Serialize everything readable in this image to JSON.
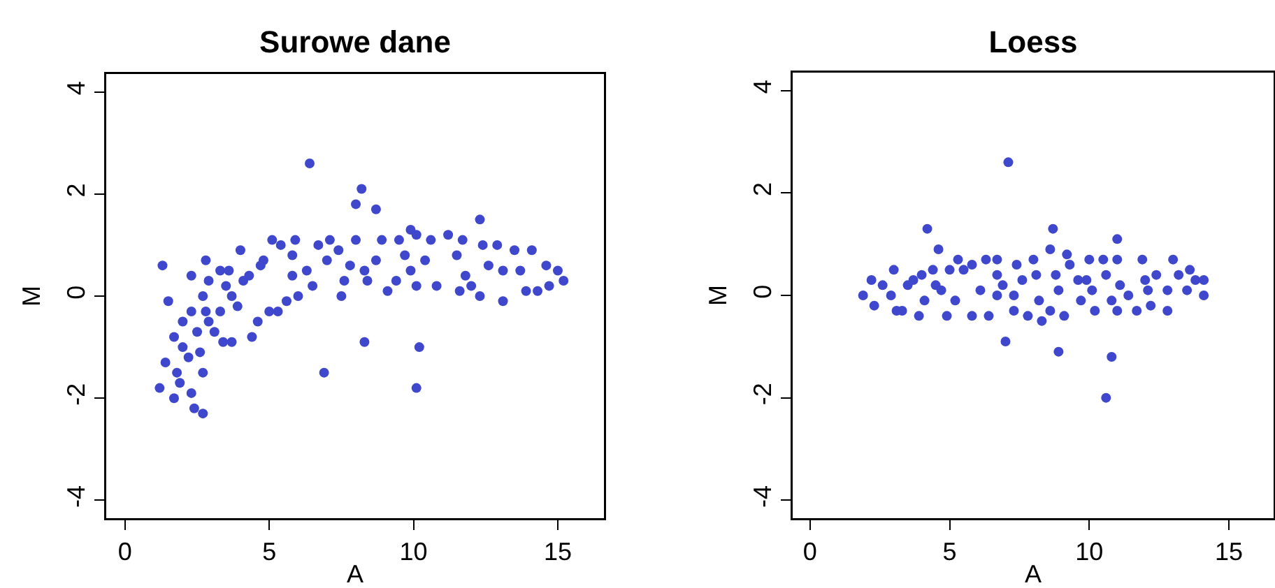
{
  "chart_data": [
    {
      "type": "scatter",
      "title": "Surowe dane",
      "xlabel": "A",
      "ylabel": "M",
      "xlim": [
        -0.65,
        16.6
      ],
      "ylim": [
        -4.35,
        4.35
      ],
      "xticks": [
        0,
        5,
        10,
        15
      ],
      "yticks": [
        -4,
        -2,
        0,
        2,
        4
      ],
      "grid": false,
      "marker": "circle",
      "series": [
        {
          "color": "#3f48cc",
          "x": [
            6.4,
            8.2,
            8.0,
            8.7,
            12.3,
            8.3,
            10.2,
            6.9,
            10.1,
            1.3,
            1.5,
            2.4,
            2.7,
            2.3,
            1.2,
            1.7,
            1.4,
            1.9,
            1.8,
            2.0,
            1.7,
            2.0,
            2.3,
            2.3,
            2.8,
            2.7,
            2.6,
            2.2,
            2.9,
            2.7,
            2.8,
            3.1,
            3.4,
            3.7,
            4.4,
            3.3,
            3.6,
            4.0,
            3.9,
            3.5,
            4.6,
            4.3,
            4.8,
            5.1,
            5.4,
            5.0,
            5.3,
            5.6,
            6.0,
            5.9,
            5.8,
            6.7,
            6.5,
            7.1,
            7.5,
            8.0,
            7.4,
            8.4,
            8.9,
            9.1,
            9.4,
            9.5,
            9.9,
            10.1,
            10.1,
            10.8,
            11.2,
            10.6,
            11.7,
            11.6,
            12.0,
            12.3,
            12.4,
            12.9,
            13.1,
            13.5,
            14.1,
            13.9,
            14.3,
            14.6,
            14.7,
            15.0,
            15.2,
            13.1,
            12.6,
            11.5,
            10.4,
            9.7,
            8.7,
            8.3,
            7.8,
            7.0,
            6.3,
            5.8,
            4.7,
            4.1,
            3.7,
            3.3,
            2.9,
            2.5,
            13.7,
            11.8,
            7.6,
            9.9
          ],
          "values": [
            2.6,
            2.1,
            1.8,
            1.7,
            1.5,
            -0.9,
            -1.0,
            -1.5,
            -1.8,
            0.6,
            -0.1,
            -2.2,
            -2.3,
            -1.9,
            -1.8,
            -2.0,
            -1.3,
            -1.7,
            -1.5,
            -1.0,
            -0.8,
            -0.5,
            -0.3,
            0.4,
            0.7,
            -1.5,
            -1.1,
            -1.2,
            0.3,
            0.0,
            -0.3,
            -0.7,
            -0.9,
            -0.9,
            -0.8,
            0.5,
            0.5,
            0.9,
            -0.2,
            0.2,
            -0.5,
            0.4,
            0.7,
            1.1,
            1.0,
            -0.3,
            -0.3,
            -0.1,
            0.0,
            1.1,
            0.8,
            1.0,
            0.2,
            1.1,
            0.0,
            1.1,
            0.9,
            0.3,
            1.1,
            0.1,
            0.3,
            1.1,
            1.3,
            1.2,
            0.2,
            0.2,
            1.2,
            1.1,
            1.1,
            0.1,
            0.2,
            0.0,
            1.0,
            1.0,
            -0.1,
            0.9,
            0.9,
            0.1,
            0.1,
            0.6,
            0.2,
            0.5,
            0.3,
            0.5,
            0.6,
            0.8,
            0.7,
            0.8,
            0.7,
            0.5,
            0.6,
            0.7,
            0.5,
            0.4,
            0.6,
            0.3,
            0.0,
            -0.3,
            -0.5,
            -0.7,
            0.5,
            0.4,
            0.3,
            0.5
          ]
        }
      ]
    },
    {
      "type": "scatter",
      "title": "Loess",
      "xlabel": "A",
      "ylabel": "M",
      "xlim": [
        -0.62,
        16.6
      ],
      "ylim": [
        -4.35,
        4.35
      ],
      "xticks": [
        0,
        5,
        10,
        15
      ],
      "yticks": [
        -4,
        -2,
        0,
        2,
        4
      ],
      "grid": false,
      "marker": "circle",
      "series": [
        {
          "color": "#3f48cc",
          "x": [
            7.1,
            4.2,
            8.7,
            4.6,
            11.0,
            8.6,
            9.2,
            7.0,
            8.9,
            10.8,
            10.6,
            1.9,
            2.2,
            2.3,
            2.6,
            3.0,
            2.9,
            3.1,
            3.3,
            3.5,
            3.9,
            4.0,
            4.1,
            4.4,
            4.5,
            4.9,
            5.0,
            5.3,
            5.2,
            5.5,
            5.8,
            5.8,
            6.1,
            6.3,
            6.4,
            6.7,
            6.7,
            6.9,
            7.3,
            7.3,
            7.4,
            7.6,
            7.8,
            8.0,
            8.1,
            8.2,
            8.3,
            8.6,
            8.8,
            8.9,
            9.1,
            9.3,
            9.7,
            9.6,
            10.0,
            10.1,
            10.2,
            10.5,
            10.6,
            10.8,
            11.0,
            11.0,
            11.1,
            11.4,
            11.7,
            11.9,
            12.0,
            12.2,
            12.4,
            12.8,
            12.8,
            13.0,
            13.2,
            13.5,
            13.6,
            13.8,
            14.1,
            14.1,
            12.1,
            9.9,
            6.7,
            4.7,
            3.7
          ],
          "values": [
            2.6,
            1.3,
            1.3,
            0.9,
            1.1,
            0.9,
            0.8,
            -0.9,
            -1.1,
            -1.2,
            -2.0,
            0.0,
            0.3,
            -0.2,
            0.2,
            0.5,
            0.0,
            -0.3,
            -0.3,
            0.2,
            -0.4,
            0.4,
            -0.1,
            0.5,
            0.2,
            -0.4,
            0.5,
            0.7,
            -0.1,
            0.5,
            0.6,
            -0.4,
            0.1,
            0.7,
            -0.4,
            0.4,
            0.7,
            0.2,
            0.0,
            -0.3,
            0.6,
            0.3,
            -0.4,
            0.7,
            0.4,
            -0.1,
            -0.5,
            -0.3,
            0.4,
            0.1,
            -0.4,
            0.6,
            -0.1,
            0.3,
            0.7,
            0.1,
            -0.3,
            0.7,
            0.4,
            -0.1,
            -0.3,
            0.7,
            0.2,
            0.0,
            -0.3,
            0.7,
            0.3,
            -0.2,
            0.4,
            0.1,
            -0.3,
            0.7,
            0.4,
            0.1,
            0.5,
            0.3,
            0.3,
            0.0,
            0.1,
            0.3,
            0.0,
            0.1,
            0.3
          ]
        }
      ]
    }
  ]
}
